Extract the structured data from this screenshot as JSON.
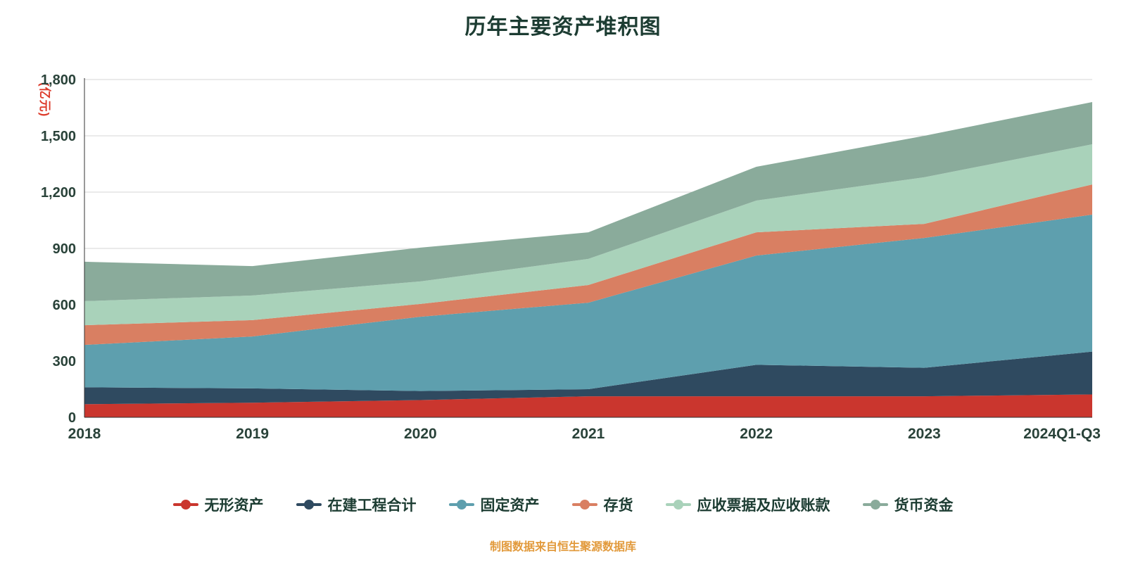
{
  "title": "历年主要资产堆积图",
  "source_note": "制图数据来自恒生聚源数据库",
  "y_axis": {
    "unit": "(亿元)",
    "tick_values": [
      0,
      300,
      600,
      900,
      1200,
      1500,
      1800
    ],
    "tick_labels": [
      "0",
      "300",
      "600",
      "900",
      "1,200",
      "1,500",
      "1,800"
    ]
  },
  "chart_data": {
    "type": "area",
    "stacked": true,
    "title": "历年主要资产堆积图",
    "ylabel": "(亿元)",
    "xlabel": "",
    "ylim": [
      0,
      1800
    ],
    "grid": true,
    "legend_position": "bottom",
    "categories": [
      "2018",
      "2019",
      "2020",
      "2021",
      "2022",
      "2023",
      "2024Q1-Q3"
    ],
    "series": [
      {
        "name": "无形资产",
        "slug": "intangible-assets",
        "color": "#ca362e",
        "values": [
          70,
          78,
          92,
          112,
          112,
          112,
          122
        ]
      },
      {
        "name": "在建工程合计",
        "slug": "construction-in-progress",
        "color": "#2f4a60",
        "values": [
          90,
          76,
          48,
          38,
          168,
          152,
          228
        ]
      },
      {
        "name": "固定资产",
        "slug": "fixed-assets",
        "color": "#5e9fae",
        "values": [
          226,
          277,
          396,
          461,
          582,
          692,
          730
        ]
      },
      {
        "name": "存货",
        "slug": "inventory",
        "color": "#d97f62",
        "values": [
          105,
          87,
          68,
          94,
          124,
          75,
          161
        ]
      },
      {
        "name": "应收票据及应收账款",
        "slug": "notes-and-accounts-receivable",
        "color": "#a9d2ba",
        "values": [
          128,
          131,
          120,
          139,
          169,
          248,
          214
        ]
      },
      {
        "name": "货币资金",
        "slug": "monetary-funds",
        "color": "#8aab9b",
        "values": [
          210,
          157,
          180,
          142,
          180,
          221,
          225
        ]
      }
    ]
  },
  "colors": {
    "background": "#ffffff",
    "grid": "#d6d6d6",
    "axis": "#333333",
    "tick_text": "#294239",
    "title_text": "#1c3c32",
    "unit_text": "#dd3b2b",
    "note_text": "#e29a3c"
  }
}
